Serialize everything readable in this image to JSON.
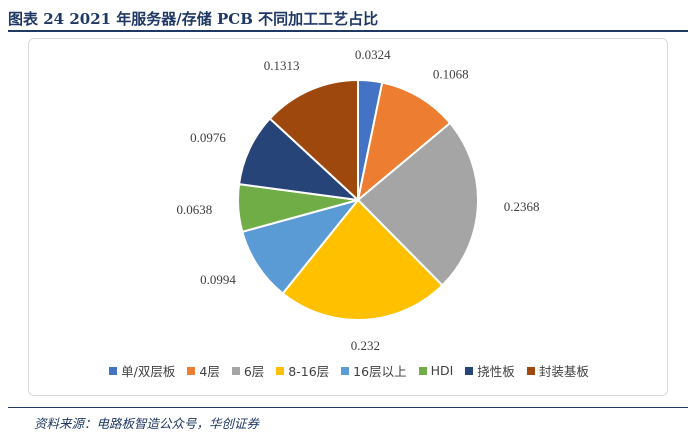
{
  "header": {
    "title": "图表 24   2021 年服务器/存储 PCB 不同加工工艺占比"
  },
  "footer": {
    "source": "资料来源：电路板智造公众号，华创证券"
  },
  "chart_data": {
    "type": "pie",
    "categories": [
      "单/双层板",
      "4层",
      "6层",
      "8-16层",
      "16层以上",
      "HDI",
      "挠性板",
      "封装基板"
    ],
    "values": [
      0.0324,
      0.1068,
      0.2368,
      0.232,
      0.0994,
      0.0638,
      0.0976,
      0.1313
    ],
    "labels": [
      "0.0324",
      "0.1068",
      "0.2368",
      "0.232",
      "0.0994",
      "0.0638",
      "0.0976",
      "0.1313"
    ],
    "colors": [
      "#4472c4",
      "#ed7d31",
      "#a5a5a5",
      "#ffc000",
      "#5b9bd5",
      "#70ad47",
      "#264478",
      "#9e480e"
    ],
    "legend_position": "bottom",
    "start_angle": "12 o'clock, clockwise"
  }
}
